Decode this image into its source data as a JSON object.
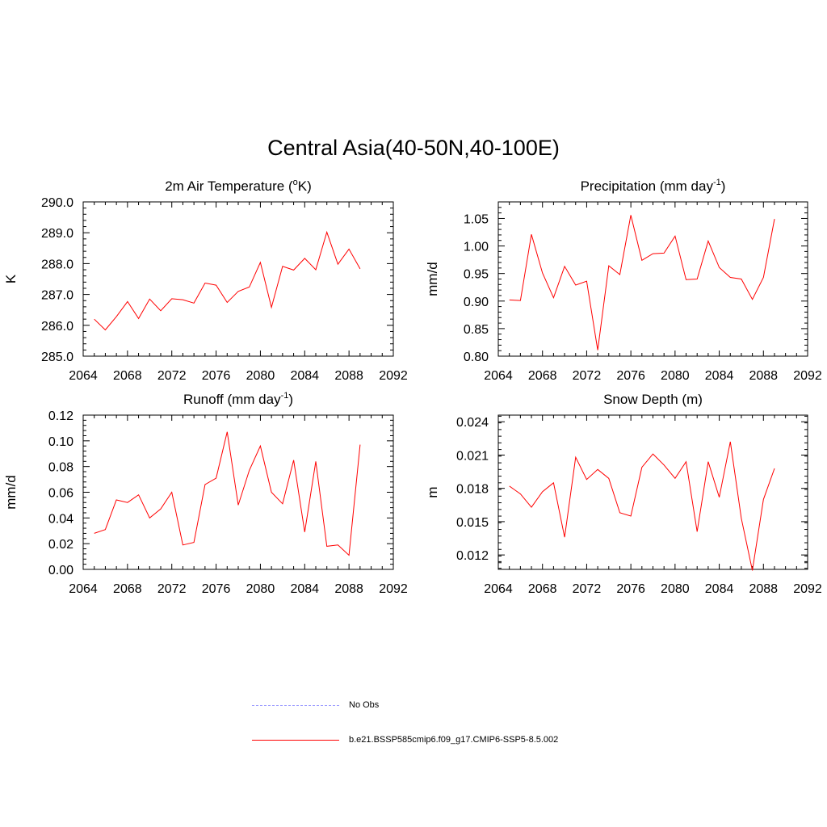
{
  "figure": {
    "title": "Central Asia(40-50N,40-100E)"
  },
  "legend": {
    "items": [
      {
        "label": "No Obs",
        "color": "#9999ff",
        "style": "dashed"
      },
      {
        "label": "b.e21.BSSP585cmip6.f09_g17.CMIP6-SSP5-8.5.002",
        "color": "#ff0000",
        "style": "solid"
      }
    ]
  },
  "chart_data": [
    {
      "type": "line",
      "title": "2m Air Temperature (",
      "title_sup": "o",
      "title_end": "K)",
      "ylabel": "K",
      "xlim": [
        2064,
        2092
      ],
      "ylim": [
        285.0,
        290.0
      ],
      "xticks": [
        "2064",
        "2068",
        "2072",
        "2076",
        "2080",
        "2084",
        "2088",
        "2092"
      ],
      "yticks": [
        "285.0",
        "286.0",
        "287.0",
        "288.0",
        "289.0",
        "290.0"
      ],
      "ytick_values": [
        285.0,
        286.0,
        287.0,
        288.0,
        289.0,
        290.0
      ],
      "series": [
        {
          "color": "#ff0000",
          "x": [
            2065,
            2066,
            2067,
            2068,
            2069,
            2070,
            2071,
            2072,
            2073,
            2074,
            2075,
            2076,
            2077,
            2078,
            2079,
            2080,
            2081,
            2082,
            2083,
            2084,
            2085,
            2086,
            2087,
            2088,
            2089
          ],
          "y": [
            286.2,
            285.85,
            286.28,
            286.77,
            286.22,
            286.85,
            286.47,
            286.86,
            286.83,
            286.72,
            287.37,
            287.3,
            286.74,
            287.1,
            287.24,
            288.04,
            286.58,
            287.91,
            287.79,
            288.17,
            287.8,
            289.02,
            287.98,
            288.47,
            287.83
          ]
        }
      ]
    },
    {
      "type": "line",
      "title": "Precipitation (mm day",
      "title_sup": "-1",
      "title_end": ")",
      "ylabel": "mm/d",
      "xlim": [
        2064,
        2092
      ],
      "ylim": [
        0.8,
        1.08
      ],
      "xticks": [
        "2064",
        "2068",
        "2072",
        "2076",
        "2080",
        "2084",
        "2088",
        "2092"
      ],
      "yticks": [
        "0.80",
        "0.85",
        "0.90",
        "0.95",
        "1.00",
        "1.05"
      ],
      "ytick_values": [
        0.8,
        0.85,
        0.9,
        0.95,
        1.0,
        1.05
      ],
      "series": [
        {
          "color": "#ff0000",
          "x": [
            2065,
            2066,
            2067,
            2068,
            2069,
            2070,
            2071,
            2072,
            2073,
            2074,
            2075,
            2076,
            2077,
            2078,
            2079,
            2080,
            2081,
            2082,
            2083,
            2084,
            2085,
            2086,
            2087,
            2088,
            2089
          ],
          "y": [
            0.902,
            0.901,
            1.021,
            0.951,
            0.906,
            0.963,
            0.929,
            0.936,
            0.811,
            0.964,
            0.948,
            1.056,
            0.974,
            0.986,
            0.987,
            1.018,
            0.939,
            0.94,
            1.009,
            0.961,
            0.943,
            0.94,
            0.903,
            0.943,
            1.049
          ]
        }
      ]
    },
    {
      "type": "line",
      "title": "Runoff (mm day",
      "title_sup": "-1",
      "title_end": ")",
      "ylabel": "mm/d",
      "xlim": [
        2064,
        2092
      ],
      "ylim": [
        0.0,
        0.12
      ],
      "xticks": [
        "2064",
        "2068",
        "2072",
        "2076",
        "2080",
        "2084",
        "2088",
        "2092"
      ],
      "yticks": [
        "0.00",
        "0.02",
        "0.04",
        "0.06",
        "0.08",
        "0.10",
        "0.12"
      ],
      "ytick_values": [
        0.0,
        0.02,
        0.04,
        0.06,
        0.08,
        0.1,
        0.12
      ],
      "series": [
        {
          "color": "#ff0000",
          "x": [
            2065,
            2066,
            2067,
            2068,
            2069,
            2070,
            2071,
            2072,
            2073,
            2074,
            2075,
            2076,
            2077,
            2078,
            2079,
            2080,
            2081,
            2082,
            2083,
            2084,
            2085,
            2086,
            2087,
            2088,
            2089
          ],
          "y": [
            0.028,
            0.031,
            0.054,
            0.052,
            0.058,
            0.04,
            0.047,
            0.06,
            0.019,
            0.021,
            0.066,
            0.071,
            0.107,
            0.05,
            0.077,
            0.096,
            0.06,
            0.051,
            0.085,
            0.029,
            0.084,
            0.018,
            0.019,
            0.011,
            0.097
          ]
        }
      ]
    },
    {
      "type": "line",
      "title": "Snow Depth (m)",
      "title_sup": "",
      "title_end": "",
      "ylabel": "m",
      "xlim": [
        2064,
        2092
      ],
      "ylim": [
        0.0107,
        0.0246
      ],
      "xticks": [
        "2064",
        "2068",
        "2072",
        "2076",
        "2080",
        "2084",
        "2088",
        "2092"
      ],
      "yticks": [
        "0.012",
        "0.015",
        "0.018",
        "0.021",
        "0.024"
      ],
      "ytick_values": [
        0.012,
        0.015,
        0.018,
        0.021,
        0.024
      ],
      "series": [
        {
          "color": "#ff0000",
          "x": [
            2065,
            2066,
            2067,
            2068,
            2069,
            2070,
            2071,
            2072,
            2073,
            2074,
            2075,
            2076,
            2077,
            2078,
            2079,
            2080,
            2081,
            2082,
            2083,
            2084,
            2085,
            2086,
            2087,
            2088,
            2089
          ],
          "y": [
            0.0182,
            0.0175,
            0.0163,
            0.0177,
            0.0185,
            0.0136,
            0.0208,
            0.0188,
            0.0197,
            0.0189,
            0.0158,
            0.0155,
            0.0199,
            0.0211,
            0.0201,
            0.0189,
            0.0204,
            0.0141,
            0.0204,
            0.0172,
            0.0222,
            0.0153,
            0.0106,
            0.017,
            0.0198
          ]
        }
      ]
    }
  ]
}
